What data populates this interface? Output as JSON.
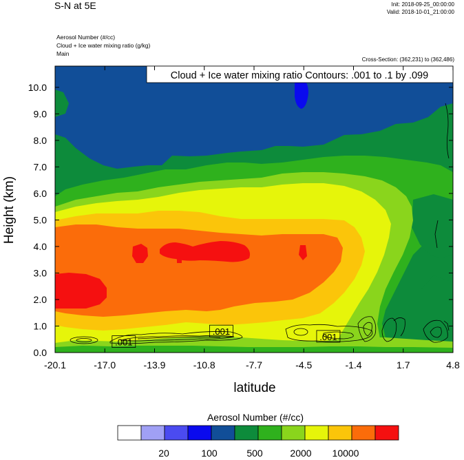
{
  "header": {
    "title": "S-N at 5E",
    "init": "Init: 2018-09-25_00:00:00",
    "valid": "Valid: 2018-10-01_21:00:00",
    "field_lines": [
      "Aerosol Number   (#/cc)",
      "Cloud + Ice water mixing ratio   (g/kg)",
      "Main"
    ],
    "cross_section": "Cross-Section: (362,231) to (362,486)"
  },
  "chart_data": {
    "type": "heatmap",
    "title": "",
    "xlabel": "latitude",
    "ylabel": "Height (km)",
    "xlim": [
      -20.1,
      4.8
    ],
    "ylim": [
      0.0,
      10.8
    ],
    "x_ticks": [
      "-20.1",
      "-17.0",
      "-13.9",
      "-10.8",
      "-7.7",
      "-4.5",
      "-1.4",
      "1.7",
      "4.8"
    ],
    "y_ticks": [
      "0.0",
      "1.0",
      "2.0",
      "3.0",
      "4.0",
      "5.0",
      "6.0",
      "7.0",
      "8.0",
      "9.0",
      "10.0"
    ],
    "contour_legend": "Cloud + Ice water mixing ratio Contours: .001 to .1 by .099",
    "contour_labels": [
      {
        "text": ".001",
        "x": -15.8,
        "y": 0.4
      },
      {
        "text": ".001",
        "x": -9.7,
        "y": 0.8
      },
      {
        "text": ".001",
        "x": -3.0,
        "y": 0.6
      }
    ],
    "colorbar": {
      "title": "Aerosol Number  (#/cc)",
      "colors": [
        "#ffffff",
        "#a0a0f5",
        "#4b4bf0",
        "#0a0aee",
        "#114e98",
        "#0d8b3b",
        "#2fb11d",
        "#8ad51c",
        "#e6f50a",
        "#fbc50a",
        "#fb6c0a",
        "#f51010"
      ],
      "labels": [
        "20",
        "100",
        "500",
        "2000",
        "10000"
      ]
    }
  }
}
